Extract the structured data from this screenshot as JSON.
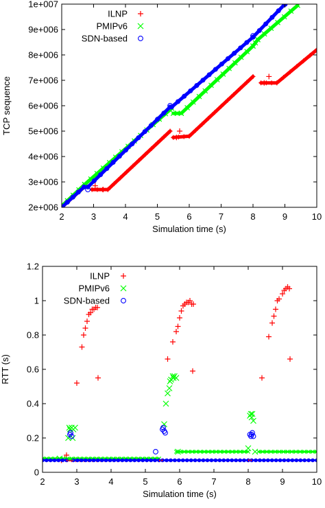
{
  "chart_data": [
    {
      "type": "scatter",
      "xlabel": "Simulation time (s)",
      "ylabel": "TCP sequence",
      "xlim": [
        2,
        10
      ],
      "ylim": [
        2000000,
        10000000
      ],
      "x_ticks": [
        2,
        3,
        4,
        5,
        6,
        7,
        8,
        9,
        10
      ],
      "y_ticks": [
        2000000,
        3000000,
        4000000,
        5000000,
        6000000,
        7000000,
        8000000,
        9000000,
        10000000
      ],
      "y_tick_labels": [
        "2e+006",
        "3e+006",
        "4e+006",
        "5e+006",
        "6e+006",
        "7e+006",
        "8e+006",
        "9e+006",
        "1e+007"
      ],
      "grid": false,
      "legend_position": "top-left",
      "series": [
        {
          "name": "ILNP",
          "color": "#ff0000",
          "marker": "plus",
          "segments": [
            [
              [
                2.0,
                2000000
              ],
              [
                2.75,
                2850000
              ]
            ],
            [
              [
                2.95,
                2700000
              ],
              [
                3.45,
                2700000
              ],
              [
                5.4,
                5000000
              ]
            ],
            [
              [
                5.5,
                4750000
              ],
              [
                6.0,
                4800000
              ],
              [
                8.0,
                7150000
              ]
            ],
            [
              [
                8.25,
                6900000
              ],
              [
                8.75,
                6900000
              ],
              [
                10.0,
                8200000
              ]
            ]
          ],
          "scatter": [
            [
              3.05,
              2850000
            ],
            [
              3.3,
              2700000
            ],
            [
              5.7,
              5000000
            ],
            [
              5.6,
              4750000
            ],
            [
              8.5,
              7150000
            ],
            [
              8.35,
              6900000
            ]
          ]
        },
        {
          "name": "PMIPv6",
          "color": "#00ff00",
          "marker": "x",
          "segments": [
            [
              [
                2.0,
                2050000
              ],
              [
                2.72,
                2900000
              ],
              [
                5.45,
                5900000
              ]
            ],
            [
              [
                5.5,
                5700000
              ],
              [
                5.75,
                5700000
              ],
              [
                8.0,
                8350000
              ]
            ],
            [
              [
                8.0,
                8350000
              ],
              [
                8.15,
                8600000
              ],
              [
                9.4,
                9950000
              ]
            ]
          ],
          "scatter": []
        },
        {
          "name": "SDN-based",
          "color": "#0000ff",
          "marker": "circle",
          "segments": [
            [
              [
                2.0,
                2000000
              ],
              [
                2.7,
                2800000
              ]
            ],
            [
              [
                2.82,
                2800000
              ],
              [
                5.4,
                5950000
              ]
            ],
            [
              [
                5.45,
                5950000
              ],
              [
                8.0,
                8700000
              ],
              [
                9.0,
                10000000
              ]
            ]
          ],
          "scatter": [
            [
              2.82,
              2700000
            ],
            [
              5.4,
              6000000
            ],
            [
              8.0,
              8750000
            ],
            [
              9.0,
              10000000
            ]
          ]
        }
      ]
    },
    {
      "type": "scatter",
      "xlabel": "Simulation time (s)",
      "ylabel": "RTT (s)",
      "xlim": [
        2,
        10
      ],
      "ylim": [
        0,
        1.2
      ],
      "x_ticks": [
        2,
        3,
        4,
        5,
        6,
        7,
        8,
        9,
        10
      ],
      "y_ticks": [
        0,
        0.2,
        0.4,
        0.6,
        0.8,
        1,
        1.2
      ],
      "y_tick_labels": [
        "0",
        "0.2",
        "0.4",
        "0.6",
        "0.8",
        "1",
        "1.2"
      ],
      "grid": false,
      "legend_position": "top-left",
      "series": [
        {
          "name": "ILNP",
          "color": "#ff0000",
          "marker": "plus",
          "baselines": [
            [
              2.0,
              5.4,
              0.07
            ],
            [
              5.4,
              8.0,
              0.07
            ],
            [
              8.0,
              10.0,
              0.07
            ]
          ],
          "points": [
            [
              2.55,
              0.07
            ],
            [
              2.65,
              0.08
            ],
            [
              2.7,
              0.1
            ],
            [
              3.0,
              0.52
            ],
            [
              3.15,
              0.73
            ],
            [
              3.2,
              0.8
            ],
            [
              3.25,
              0.84
            ],
            [
              3.3,
              0.88
            ],
            [
              3.35,
              0.92
            ],
            [
              3.4,
              0.93
            ],
            [
              3.45,
              0.95
            ],
            [
              3.5,
              0.95
            ],
            [
              3.55,
              0.96
            ],
            [
              3.6,
              0.96
            ],
            [
              3.62,
              0.55
            ],
            [
              5.65,
              0.66
            ],
            [
              5.8,
              0.76
            ],
            [
              5.9,
              0.82
            ],
            [
              5.95,
              0.85
            ],
            [
              6.0,
              0.9
            ],
            [
              6.05,
              0.94
            ],
            [
              6.1,
              0.97
            ],
            [
              6.15,
              0.98
            ],
            [
              6.2,
              0.99
            ],
            [
              6.25,
              0.99
            ],
            [
              6.3,
              1.0
            ],
            [
              6.35,
              0.98
            ],
            [
              6.4,
              0.98
            ],
            [
              6.38,
              0.59
            ],
            [
              8.4,
              0.55
            ],
            [
              8.6,
              0.79
            ],
            [
              8.7,
              0.87
            ],
            [
              8.75,
              0.91
            ],
            [
              8.8,
              0.95
            ],
            [
              8.85,
              1.0
            ],
            [
              8.9,
              1.01
            ],
            [
              9.0,
              1.04
            ],
            [
              9.05,
              1.06
            ],
            [
              9.1,
              1.07
            ],
            [
              9.15,
              1.08
            ],
            [
              9.2,
              1.07
            ],
            [
              9.22,
              0.66
            ]
          ]
        },
        {
          "name": "PMIPv6",
          "color": "#00ff00",
          "marker": "x",
          "baselines": [
            [
              2.0,
              5.4,
              0.08
            ],
            [
              5.9,
              8.0,
              0.12
            ],
            [
              8.3,
              10.0,
              0.12
            ]
          ],
          "points": [
            [
              2.5,
              0.08
            ],
            [
              2.75,
              0.2
            ],
            [
              2.78,
              0.26
            ],
            [
              2.8,
              0.25
            ],
            [
              2.85,
              0.26
            ],
            [
              2.9,
              0.25
            ],
            [
              2.88,
              0.2
            ],
            [
              2.95,
              0.26
            ],
            [
              5.55,
              0.28
            ],
            [
              5.6,
              0.4
            ],
            [
              5.65,
              0.46
            ],
            [
              5.7,
              0.49
            ],
            [
              5.72,
              0.53
            ],
            [
              5.75,
              0.54
            ],
            [
              5.8,
              0.56
            ],
            [
              5.82,
              0.55
            ],
            [
              5.85,
              0.56
            ],
            [
              5.9,
              0.55
            ],
            [
              5.95,
              0.12
            ],
            [
              8.0,
              0.14
            ],
            [
              8.05,
              0.33
            ],
            [
              8.08,
              0.34
            ],
            [
              8.1,
              0.32
            ],
            [
              8.12,
              0.34
            ],
            [
              8.15,
              0.3
            ],
            [
              8.2,
              0.12
            ]
          ]
        },
        {
          "name": "SDN-based",
          "color": "#0000ff",
          "marker": "circle",
          "baselines": [
            [
              2.0,
              2.7,
              0.07
            ],
            [
              2.9,
              5.4,
              0.07
            ],
            [
              5.5,
              8.0,
              0.07
            ],
            [
              8.1,
              10.0,
              0.07
            ]
          ],
          "points": [
            [
              2.8,
              0.22
            ],
            [
              2.82,
              0.23
            ],
            [
              2.85,
              0.21
            ],
            [
              5.5,
              0.25
            ],
            [
              5.52,
              0.26
            ],
            [
              5.55,
              0.24
            ],
            [
              5.58,
              0.23
            ],
            [
              5.3,
              0.12
            ],
            [
              8.05,
              0.22
            ],
            [
              8.08,
              0.21
            ],
            [
              8.1,
              0.22
            ],
            [
              8.12,
              0.23
            ],
            [
              8.15,
              0.21
            ]
          ]
        }
      ]
    }
  ]
}
